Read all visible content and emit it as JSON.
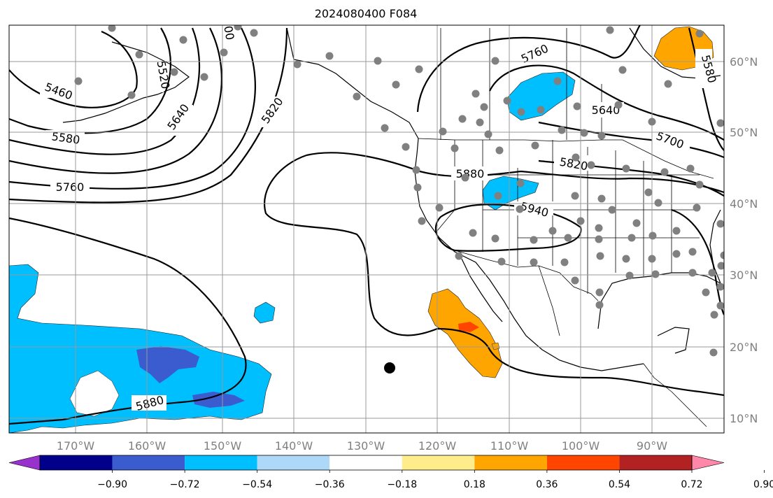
{
  "title": "2024080400 F084",
  "map": {
    "lon_labels": [
      "170°W",
      "160°W",
      "150°W",
      "140°W",
      "130°W",
      "120°W",
      "110°W",
      "100°W",
      "90°W"
    ],
    "lat_labels": [
      "60°N",
      "50°N",
      "40°N",
      "30°N",
      "20°N",
      "10°N"
    ],
    "gridlines": "on",
    "contour_labels": [
      "5460",
      "5520",
      "5580",
      "5640",
      "5760",
      "5820",
      "5880",
      "5940",
      "5700",
      "5640",
      "5580",
      "5760",
      "5880",
      "5820",
      "00"
    ],
    "marker": "black-dot",
    "station_dots": "gray"
  },
  "colorbar": {
    "colors": [
      "#9932cc",
      "#00008b",
      "#3a5ccf",
      "#00bfff",
      "#add8f8",
      "#ffffff",
      "#ffec8b",
      "#ffa500",
      "#ff4500",
      "#b22222",
      "#ff88aa"
    ],
    "tick_labels": [
      "−0.90",
      "−0.72",
      "−0.54",
      "−0.36",
      "−0.18",
      "0.18",
      "0.36",
      "0.54",
      "0.72",
      "0.90"
    ]
  }
}
